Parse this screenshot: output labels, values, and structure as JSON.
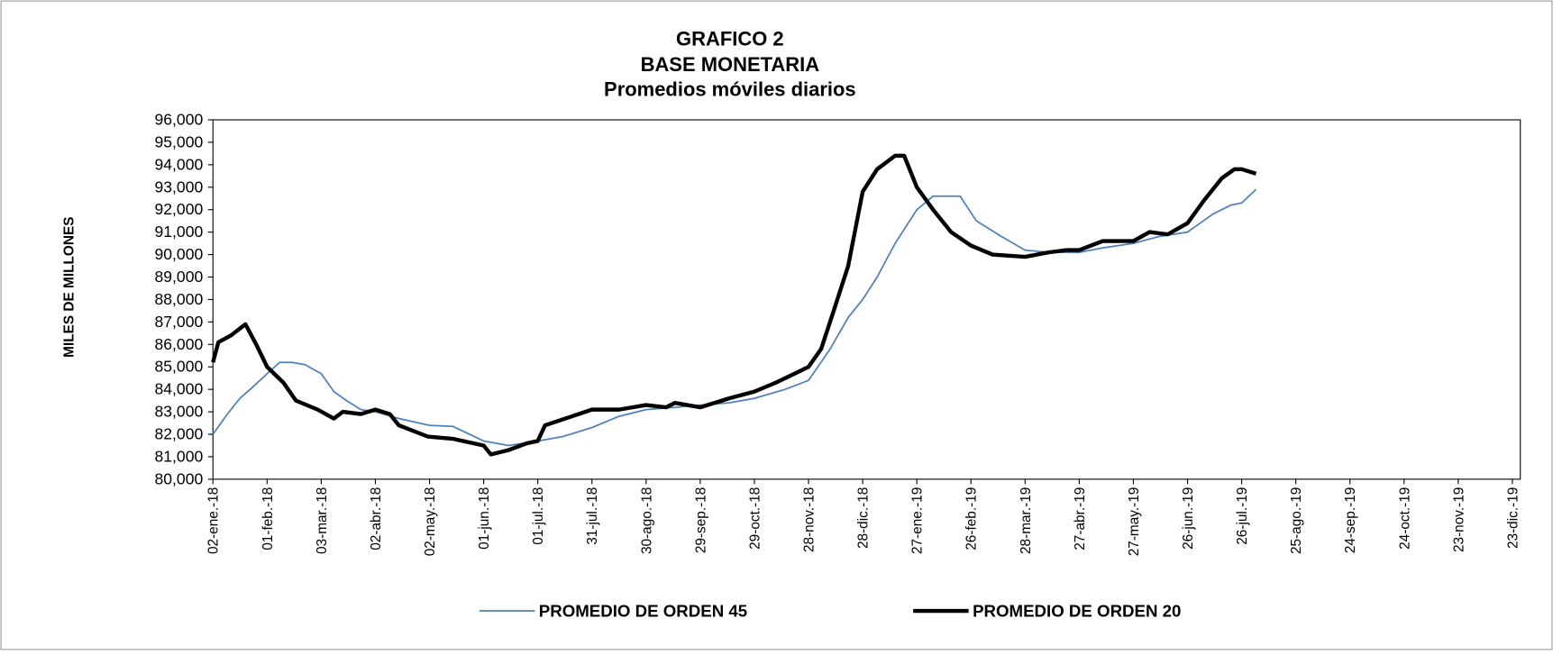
{
  "chart_data": {
    "type": "line",
    "title": "GRAFICO 2",
    "subtitle": "BASE MONETARIA",
    "subtitle2": "Promedios móviles diarios",
    "y_label": "MILES DE MILLONES",
    "xlim": [
      "2018-01-02",
      "2019-12-23"
    ],
    "ylim": [
      80000,
      96000
    ],
    "yticks": [
      {
        "value": 80000,
        "label": "80,000"
      },
      {
        "value": 81000,
        "label": "81,000"
      },
      {
        "value": 82000,
        "label": "82,000"
      },
      {
        "value": 83000,
        "label": "83,000"
      },
      {
        "value": 84000,
        "label": "84,000"
      },
      {
        "value": 85000,
        "label": "85,000"
      },
      {
        "value": 86000,
        "label": "86,000"
      },
      {
        "value": 87000,
        "label": "87,000"
      },
      {
        "value": 88000,
        "label": "88,000"
      },
      {
        "value": 89000,
        "label": "89,000"
      },
      {
        "value": 90000,
        "label": "90,000"
      },
      {
        "value": 91000,
        "label": "91,000"
      },
      {
        "value": 92000,
        "label": "92,000"
      },
      {
        "value": 93000,
        "label": "93,000"
      },
      {
        "value": 94000,
        "label": "94,000"
      },
      {
        "value": 95000,
        "label": "95,000"
      },
      {
        "value": 96000,
        "label": "96,000"
      }
    ],
    "xticks": [
      {
        "value": "2018-01-02",
        "label": "02-ene.-18"
      },
      {
        "value": "2018-02-01",
        "label": "01-feb.-18"
      },
      {
        "value": "2018-03-03",
        "label": "03-mar.-18"
      },
      {
        "value": "2018-04-02",
        "label": "02-abr.-18"
      },
      {
        "value": "2018-05-02",
        "label": "02-may.-18"
      },
      {
        "value": "2018-06-01",
        "label": "01-jun.-18"
      },
      {
        "value": "2018-07-01",
        "label": "01-jul.-18"
      },
      {
        "value": "2018-07-31",
        "label": "31-jul.-18"
      },
      {
        "value": "2018-08-30",
        "label": "30-ago.-18"
      },
      {
        "value": "2018-09-29",
        "label": "29-sep.-18"
      },
      {
        "value": "2018-10-29",
        "label": "29-oct.-18"
      },
      {
        "value": "2018-11-28",
        "label": "28-nov.-18"
      },
      {
        "value": "2018-12-28",
        "label": "28-dic.-18"
      },
      {
        "value": "2019-01-27",
        "label": "27-ene.-19"
      },
      {
        "value": "2019-02-26",
        "label": "26-feb.-19"
      },
      {
        "value": "2019-03-28",
        "label": "28-mar.-19"
      },
      {
        "value": "2019-04-27",
        "label": "27-abr.-19"
      },
      {
        "value": "2019-05-27",
        "label": "27-may.-19"
      },
      {
        "value": "2019-06-26",
        "label": "26-jun.-19"
      },
      {
        "value": "2019-07-26",
        "label": "26-jul.-19"
      },
      {
        "value": "2019-08-25",
        "label": "25-ago.-19"
      },
      {
        "value": "2019-09-24",
        "label": "24-sep.-19"
      },
      {
        "value": "2019-10-24",
        "label": "24-oct.-19"
      },
      {
        "value": "2019-11-23",
        "label": "23-nov.-19"
      },
      {
        "value": "2019-12-23",
        "label": "23-dic.-19"
      }
    ],
    "series": [
      {
        "name": "PROMEDIO DE ORDEN 45",
        "color": "#4f81bd",
        "width": 1.6,
        "x": [
          "2018-01-02",
          "2018-01-10",
          "2018-01-17",
          "2018-01-24",
          "2018-02-01",
          "2018-02-08",
          "2018-02-15",
          "2018-02-22",
          "2018-03-03",
          "2018-03-10",
          "2018-03-17",
          "2018-03-25",
          "2018-04-02",
          "2018-04-15",
          "2018-05-02",
          "2018-05-15",
          "2018-06-01",
          "2018-06-15",
          "2018-07-01",
          "2018-07-15",
          "2018-07-31",
          "2018-08-15",
          "2018-08-30",
          "2018-09-15",
          "2018-09-29",
          "2018-10-15",
          "2018-10-29",
          "2018-11-15",
          "2018-11-28",
          "2018-12-10",
          "2018-12-20",
          "2018-12-28",
          "2019-01-05",
          "2019-01-15",
          "2019-01-27",
          "2019-02-05",
          "2019-02-20",
          "2019-03-01",
          "2019-03-15",
          "2019-03-28",
          "2019-04-10",
          "2019-04-27",
          "2019-05-10",
          "2019-05-27",
          "2019-06-10",
          "2019-06-26",
          "2019-07-10",
          "2019-07-20",
          "2019-07-26",
          "2019-08-03"
        ],
        "values": [
          82000,
          82900,
          83600,
          84100,
          84700,
          85200,
          85200,
          85100,
          84700,
          83900,
          83500,
          83100,
          83000,
          82700,
          82400,
          82350,
          81700,
          81500,
          81700,
          81900,
          82300,
          82800,
          83100,
          83200,
          83300,
          83400,
          83600,
          84000,
          84400,
          85800,
          87200,
          88000,
          89000,
          90500,
          92000,
          92600,
          92600,
          91500,
          90800,
          90200,
          90100,
          90100,
          90300,
          90500,
          90800,
          91000,
          91800,
          92200,
          92300,
          92900
        ]
      },
      {
        "name": "PROMEDIO DE ORDEN 20",
        "color": "#000000",
        "width": 4,
        "x": [
          "2018-01-02",
          "2018-01-05",
          "2018-01-12",
          "2018-01-20",
          "2018-01-26",
          "2018-02-01",
          "2018-02-10",
          "2018-02-17",
          "2018-03-01",
          "2018-03-10",
          "2018-03-15",
          "2018-03-25",
          "2018-04-02",
          "2018-04-10",
          "2018-04-15",
          "2018-05-01",
          "2018-05-15",
          "2018-06-01",
          "2018-06-05",
          "2018-06-15",
          "2018-06-25",
          "2018-07-01",
          "2018-07-05",
          "2018-07-20",
          "2018-07-31",
          "2018-08-15",
          "2018-08-30",
          "2018-09-10",
          "2018-09-15",
          "2018-09-29",
          "2018-10-15",
          "2018-10-29",
          "2018-11-10",
          "2018-11-28",
          "2018-12-05",
          "2018-12-12",
          "2018-12-20",
          "2018-12-28",
          "2019-01-05",
          "2019-01-15",
          "2019-01-20",
          "2019-01-27",
          "2019-02-05",
          "2019-02-15",
          "2019-02-26",
          "2019-03-10",
          "2019-03-28",
          "2019-04-10",
          "2019-04-20",
          "2019-04-27",
          "2019-05-10",
          "2019-05-27",
          "2019-06-05",
          "2019-06-15",
          "2019-06-26",
          "2019-07-05",
          "2019-07-15",
          "2019-07-22",
          "2019-07-26",
          "2019-08-03"
        ],
        "values": [
          85200,
          86100,
          86400,
          86900,
          86000,
          85000,
          84300,
          83500,
          83100,
          82700,
          83000,
          82900,
          83100,
          82900,
          82400,
          81900,
          81800,
          81500,
          81100,
          81300,
          81600,
          81700,
          82400,
          82800,
          83100,
          83100,
          83300,
          83200,
          83400,
          83200,
          83600,
          83900,
          84300,
          85000,
          85800,
          87500,
          89500,
          92800,
          93800,
          94400,
          94400,
          93000,
          92000,
          91000,
          90400,
          90000,
          89900,
          90100,
          90200,
          90200,
          90600,
          90600,
          91000,
          90900,
          91400,
          92400,
          93400,
          93800,
          93800,
          93600
        ]
      }
    ]
  }
}
